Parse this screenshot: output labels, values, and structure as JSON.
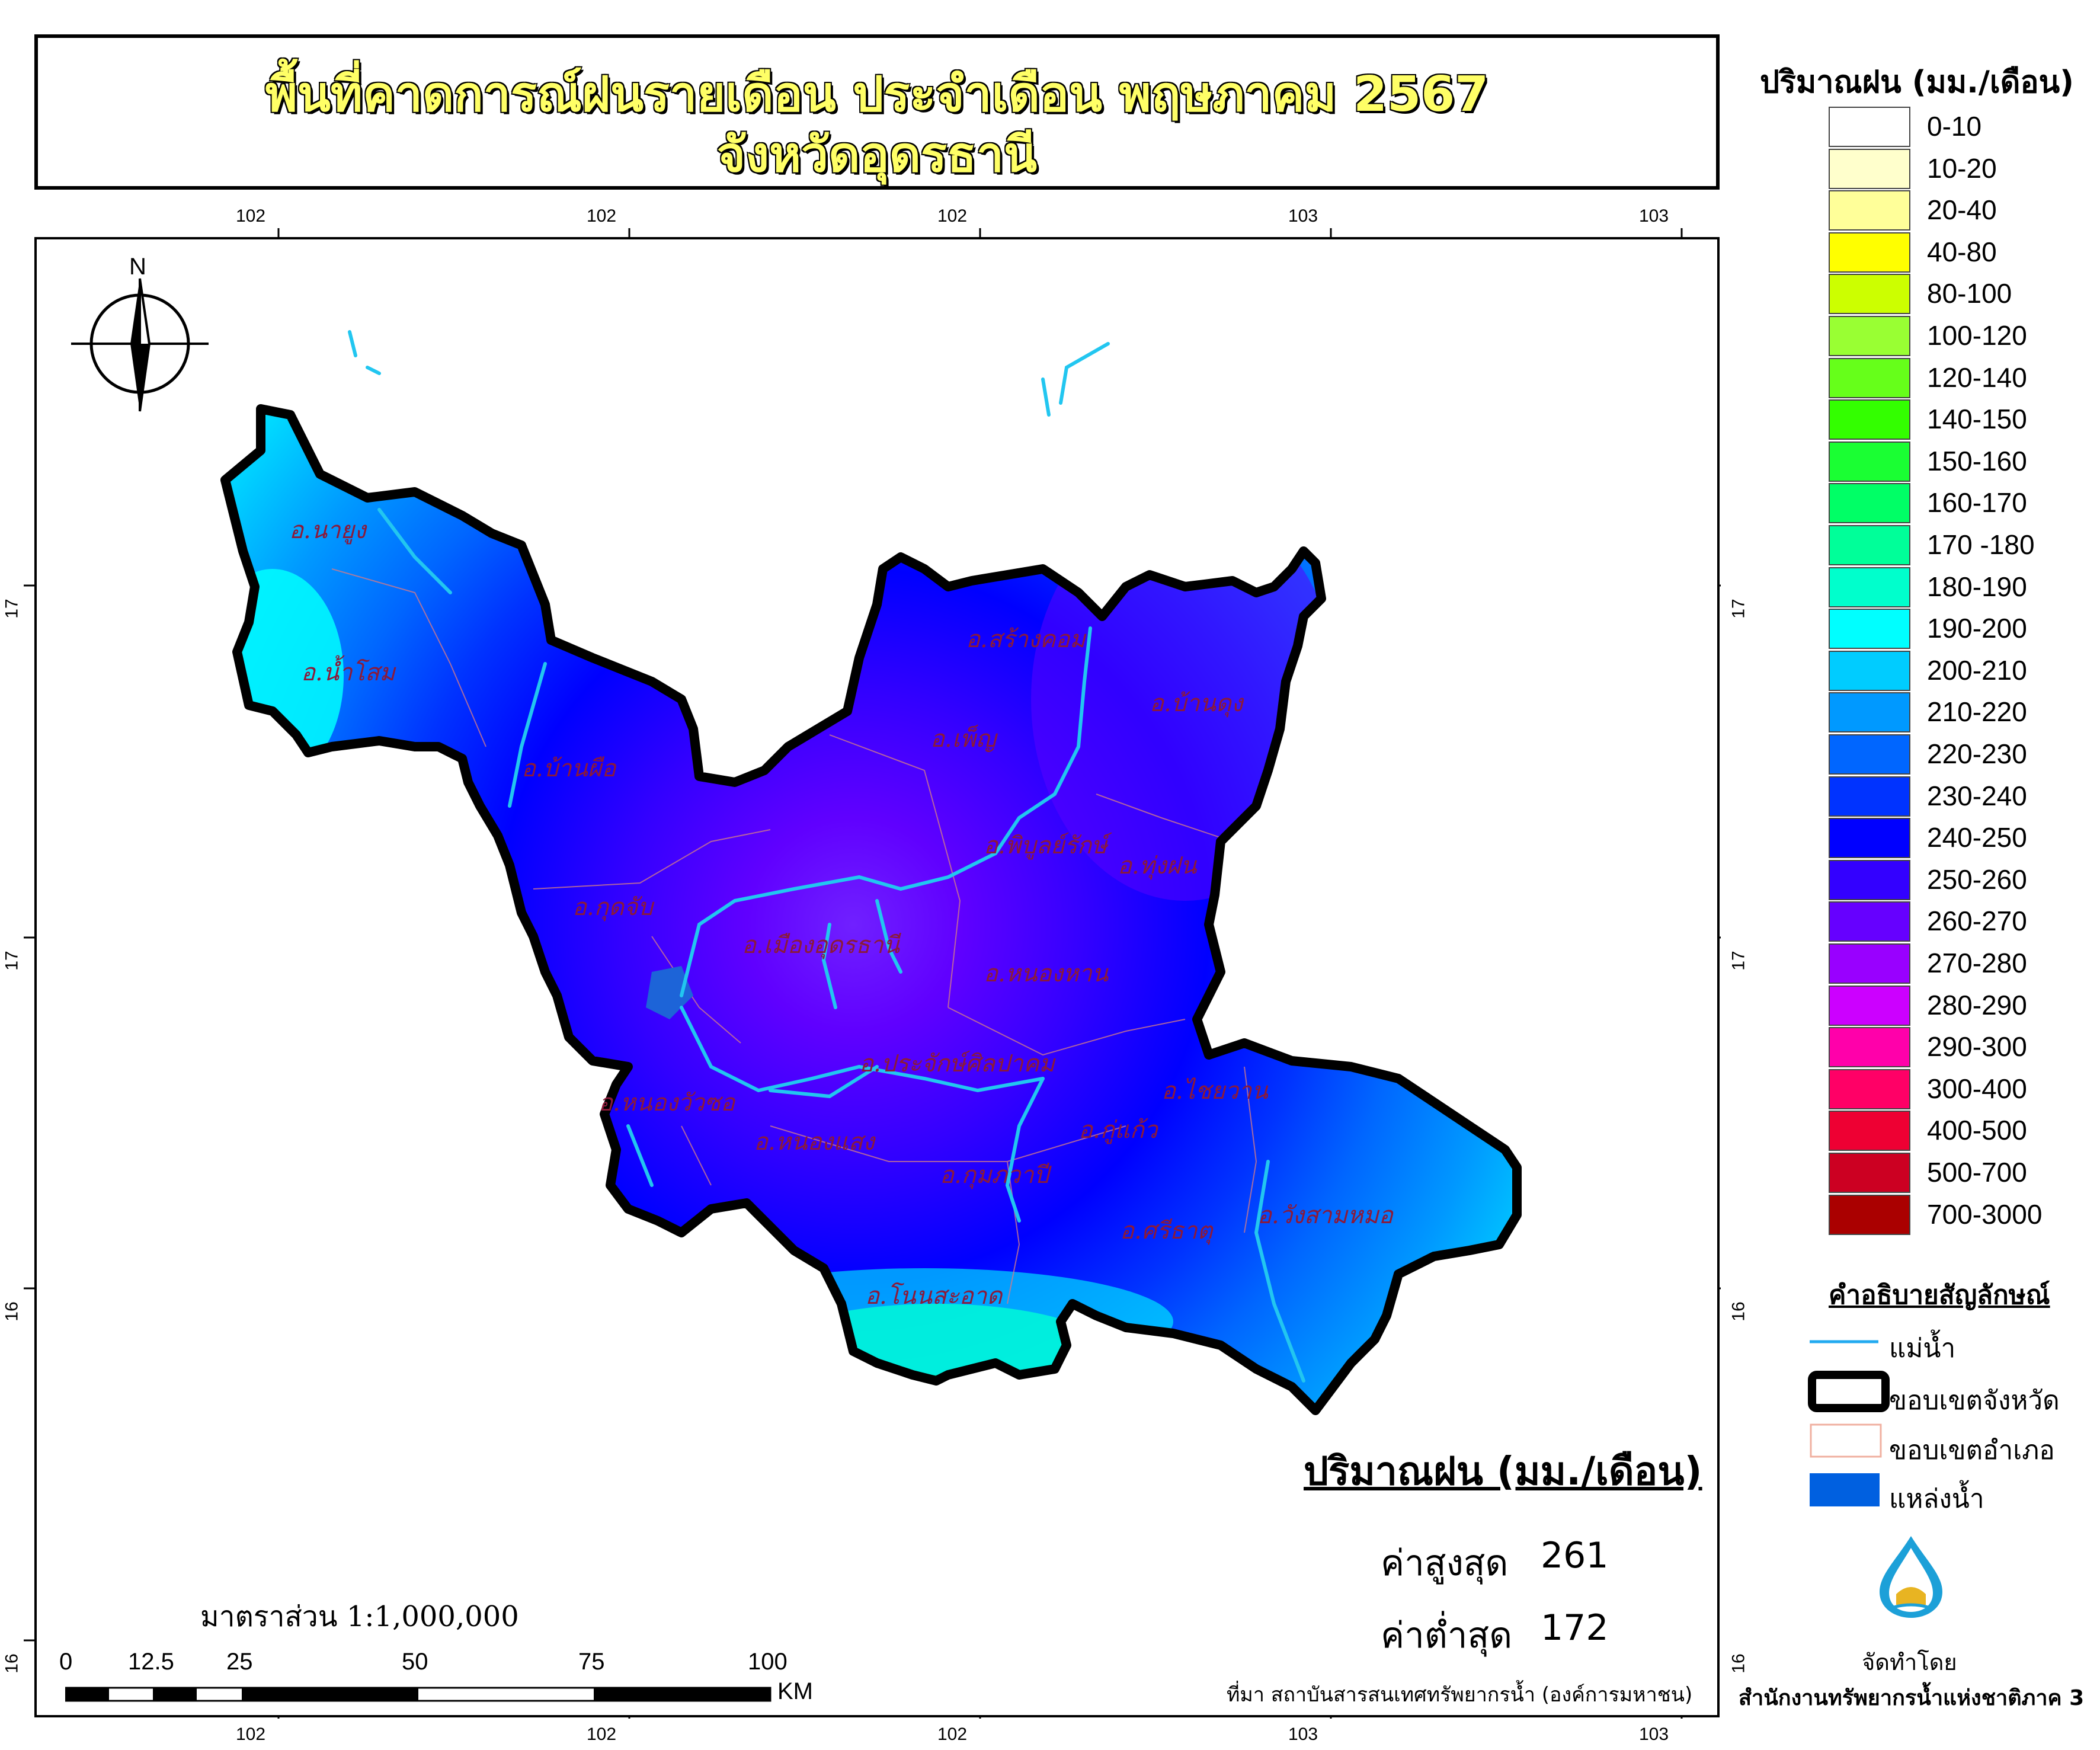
{
  "title": {
    "line1": "พื้นที่คาดการณ์ฝนรายเดือน ประจำเดือน พฤษภาคม 2567",
    "line2": "จังหวัดอุดรธานี"
  },
  "north_arrow": {
    "label": "N"
  },
  "grid": {
    "lon_ticks_top": [
      "102",
      "102",
      "102",
      "103",
      "103"
    ],
    "lon_ticks_bottom": [
      "102",
      "102",
      "102",
      "103",
      "103"
    ],
    "lat_ticks_left": [
      "17",
      "17",
      "16",
      "16"
    ],
    "lat_ticks_right": [
      "17",
      "17",
      "16",
      "16"
    ]
  },
  "districts": [
    "อ.นายูง",
    "อ.น้ำโสม",
    "อ.บ้านผือ",
    "อ.กุดจับ",
    "อ.สร้างคอม",
    "อ.เพ็ญ",
    "อ.บ้านดุง",
    "อ.พิบูลย์รักษ์",
    "อ.ทุ่งฝน",
    "อ.เมืองอุดรธานี",
    "อ.หนองหาน",
    "อ.ประจักษ์ศิลปาคม",
    "อ.ไชยวาน",
    "อ.หนองวัวซอ",
    "อ.หนองแสง",
    "อ.กู่แก้ว",
    "อ.กุมภวาปี",
    "อ.ศรีธาตุ",
    "อ.วังสามหมอ",
    "อ.โนนสะอาด"
  ],
  "legend": {
    "title": "ปริมาณฝน (มม./เดือน)",
    "classes": [
      {
        "label": "0-10",
        "color": "#ffffff"
      },
      {
        "label": "10-20",
        "color": "#ffffcc"
      },
      {
        "label": "20-40",
        "color": "#ffff99"
      },
      {
        "label": "40-80",
        "color": "#ffff00"
      },
      {
        "label": "80-100",
        "color": "#ccff00"
      },
      {
        "label": "100-120",
        "color": "#99ff33"
      },
      {
        "label": "120-140",
        "color": "#66ff1a"
      },
      {
        "label": "140-150",
        "color": "#33ff00"
      },
      {
        "label": "150-160",
        "color": "#1aff33"
      },
      {
        "label": "160-170",
        "color": "#00ff66"
      },
      {
        "label": "170 -180",
        "color": "#00ff99"
      },
      {
        "label": "180-190",
        "color": "#00ffcc"
      },
      {
        "label": "190-200",
        "color": "#00ffff"
      },
      {
        "label": "200-210",
        "color": "#00ccff"
      },
      {
        "label": "210-220",
        "color": "#0099ff"
      },
      {
        "label": "220-230",
        "color": "#0066ff"
      },
      {
        "label": "230-240",
        "color": "#0033ff"
      },
      {
        "label": "240-250",
        "color": "#0000ff"
      },
      {
        "label": "250-260",
        "color": "#3300ff"
      },
      {
        "label": "260-270",
        "color": "#6600ff"
      },
      {
        "label": "270-280",
        "color": "#9900ff"
      },
      {
        "label": "280-290",
        "color": "#cc00ff"
      },
      {
        "label": "290-300",
        "color": "#ff00aa"
      },
      {
        "label": "300-400",
        "color": "#ff0066"
      },
      {
        "label": "400-500",
        "color": "#ee0033"
      },
      {
        "label": "500-700",
        "color": "#cc0022"
      },
      {
        "label": "700-3000",
        "color": "#aa0000"
      }
    ]
  },
  "symbols": {
    "title": "คำอธิบายสัญลักษณ์",
    "items": [
      {
        "label": "แม่น้ำ"
      },
      {
        "label": "ขอบเขตจังหวัด"
      },
      {
        "label": "ขอบเขตอำเภอ"
      },
      {
        "label": "แหล่งน้ำ"
      }
    ]
  },
  "stats": {
    "title": "ปริมาณฝน (มม./เดือน)",
    "max_label": "ค่าสูงสุด",
    "max_value": "261",
    "min_label": "ค่าต่ำสุด",
    "min_value": "172"
  },
  "scale": {
    "text": "มาตราส่วน  1:1,000,000",
    "ticks": [
      "0",
      "12.5",
      "25",
      "50",
      "75",
      "100"
    ],
    "unit": "KM"
  },
  "source": "ที่มา  สถาบันสารสนเทศทรัพยากรน้ำ (องค์การมหาชน)",
  "producer": {
    "label": "จัดทำโดย",
    "org": "สำนักงานทรัพยากรน้ำแห่งชาติภาค 3"
  }
}
